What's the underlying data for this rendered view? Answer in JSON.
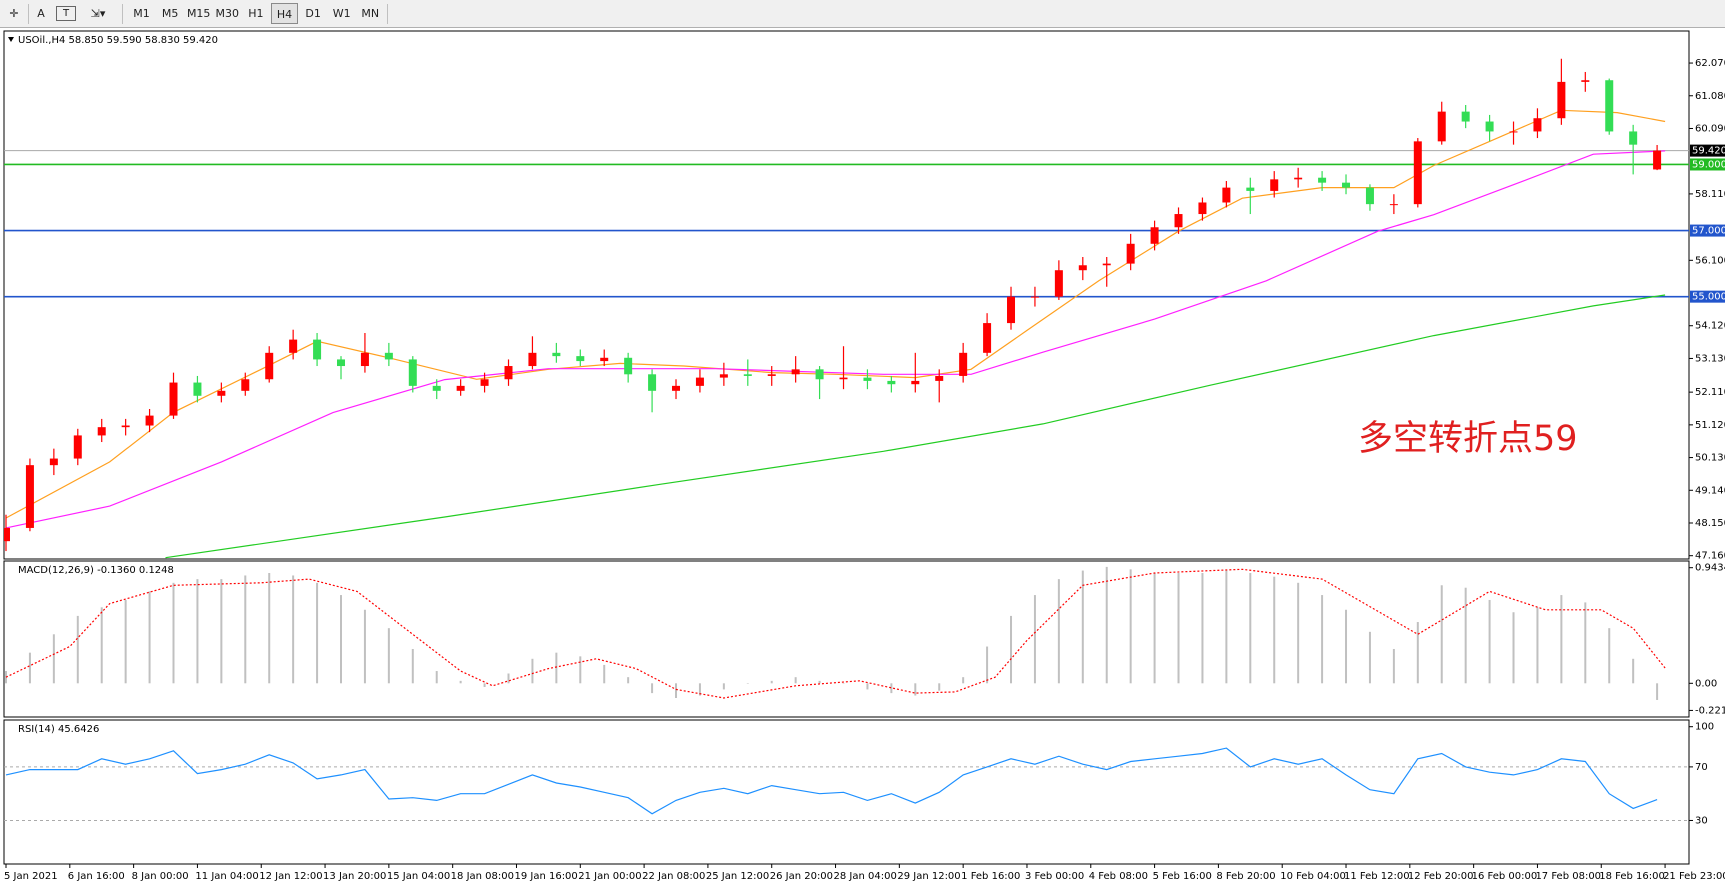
{
  "toolbar": {
    "tools": [
      "A",
      "T"
    ],
    "periods": [
      "M1",
      "M5",
      "M15",
      "M30",
      "H1",
      "H4",
      "D1",
      "W1",
      "MN"
    ],
    "active": "H4"
  },
  "chart_data": [
    {
      "type": "candlestick",
      "title": "USOil.,H4  58.850 59.590 58.830 59.420",
      "xlim": [
        0,
        211
      ],
      "ylim": [
        47.06,
        63.04
      ],
      "yticks": [
        {
          "value": 62.07,
          "label": "62.070"
        },
        {
          "value": 61.08,
          "label": "61.080"
        },
        {
          "value": 60.09,
          "label": "60.090"
        },
        {
          "value": 58.11,
          "label": "58.110"
        },
        {
          "value": 56.1,
          "label": "56.100"
        },
        {
          "value": 54.12,
          "label": "54.120"
        },
        {
          "value": 53.13,
          "label": "53.130"
        },
        {
          "value": 52.11,
          "label": "52.110"
        },
        {
          "value": 51.12,
          "label": "51.120"
        },
        {
          "value": 50.13,
          "label": "50.130"
        },
        {
          "value": 49.14,
          "label": "49.140"
        },
        {
          "value": 48.15,
          "label": "48.150"
        },
        {
          "value": 47.16,
          "label": "47.160"
        }
      ],
      "up_color": "#ff0000",
      "down_color": "#33dd55",
      "x": [
        0,
        3,
        6,
        9,
        12,
        15,
        18,
        21,
        24,
        27,
        30,
        33,
        36,
        39,
        42,
        45,
        48,
        51,
        54,
        57,
        60,
        63,
        66,
        69,
        72,
        75,
        78,
        81,
        84,
        87,
        90,
        93,
        96,
        99,
        102,
        105,
        108,
        111,
        114,
        117,
        120,
        123,
        126,
        129,
        132,
        135,
        138,
        141,
        144,
        147,
        150,
        153,
        156,
        159,
        162,
        165,
        168,
        171,
        174,
        177,
        180,
        183,
        186,
        189,
        192,
        195,
        198,
        201,
        204,
        207
      ],
      "ohlc": [
        [
          47.6,
          48.4,
          47.3,
          48.0
        ],
        [
          48.0,
          50.1,
          47.9,
          49.9
        ],
        [
          49.9,
          50.4,
          49.6,
          50.1
        ],
        [
          50.1,
          51.0,
          49.9,
          50.8
        ],
        [
          50.8,
          51.3,
          50.6,
          51.05
        ],
        [
          51.05,
          51.3,
          50.8,
          51.1
        ],
        [
          51.1,
          51.6,
          50.9,
          51.4
        ],
        [
          51.4,
          52.7,
          51.3,
          52.4
        ],
        [
          52.4,
          52.6,
          51.8,
          52.0
        ],
        [
          52.0,
          52.4,
          51.8,
          52.15
        ],
        [
          52.15,
          52.7,
          52.0,
          52.5
        ],
        [
          52.5,
          53.5,
          52.4,
          53.3
        ],
        [
          53.3,
          54.0,
          53.1,
          53.7
        ],
        [
          53.7,
          53.9,
          52.9,
          53.1
        ],
        [
          53.1,
          53.2,
          52.5,
          52.9
        ],
        [
          52.9,
          53.9,
          52.7,
          53.3
        ],
        [
          53.3,
          53.6,
          52.9,
          53.1
        ],
        [
          53.1,
          53.2,
          52.1,
          52.3
        ],
        [
          52.3,
          52.5,
          51.9,
          52.15
        ],
        [
          52.15,
          52.5,
          52.0,
          52.3
        ],
        [
          52.3,
          52.7,
          52.1,
          52.5
        ],
        [
          52.5,
          53.1,
          52.3,
          52.9
        ],
        [
          52.9,
          53.8,
          52.8,
          53.3
        ],
        [
          53.3,
          53.6,
          53.0,
          53.2
        ],
        [
          53.2,
          53.4,
          52.9,
          53.05
        ],
        [
          53.05,
          53.4,
          52.9,
          53.15
        ],
        [
          53.15,
          53.3,
          52.4,
          52.65
        ],
        [
          52.65,
          52.8,
          51.5,
          52.15
        ],
        [
          52.15,
          52.5,
          51.9,
          52.3
        ],
        [
          52.3,
          52.8,
          52.1,
          52.55
        ],
        [
          52.55,
          53.0,
          52.3,
          52.65
        ],
        [
          52.65,
          53.1,
          52.3,
          52.6
        ],
        [
          52.6,
          52.9,
          52.3,
          52.65
        ],
        [
          52.65,
          53.2,
          52.4,
          52.8
        ],
        [
          52.8,
          52.9,
          51.9,
          52.5
        ],
        [
          52.5,
          53.5,
          52.2,
          52.55
        ],
        [
          52.55,
          52.8,
          52.2,
          52.45
        ],
        [
          52.45,
          52.6,
          52.1,
          52.35
        ],
        [
          52.35,
          53.3,
          52.1,
          52.45
        ],
        [
          52.45,
          52.8,
          51.8,
          52.6
        ],
        [
          52.6,
          53.6,
          52.4,
          53.3
        ],
        [
          53.3,
          54.5,
          53.2,
          54.2
        ],
        [
          54.2,
          55.3,
          54.0,
          55.0
        ],
        [
          55.0,
          55.3,
          54.7,
          55.0
        ],
        [
          55.0,
          56.1,
          54.9,
          55.8
        ],
        [
          55.8,
          56.2,
          55.5,
          55.95
        ],
        [
          55.95,
          56.2,
          55.3,
          56.0
        ],
        [
          56.0,
          56.9,
          55.8,
          56.6
        ],
        [
          56.6,
          57.3,
          56.4,
          57.1
        ],
        [
          57.1,
          57.7,
          56.9,
          57.5
        ],
        [
          57.5,
          58.0,
          57.3,
          57.85
        ],
        [
          57.85,
          58.5,
          57.7,
          58.3
        ],
        [
          58.3,
          58.6,
          57.5,
          58.2
        ],
        [
          58.2,
          58.8,
          58.0,
          58.55
        ],
        [
          58.55,
          58.9,
          58.3,
          58.6
        ],
        [
          58.6,
          58.8,
          58.2,
          58.45
        ],
        [
          58.45,
          58.7,
          58.1,
          58.3
        ],
        [
          58.3,
          58.4,
          57.6,
          57.8
        ],
        [
          57.8,
          58.1,
          57.5,
          57.8
        ],
        [
          57.8,
          59.8,
          57.7,
          59.7
        ],
        [
          59.7,
          60.9,
          59.6,
          60.6
        ],
        [
          60.6,
          60.8,
          60.1,
          60.3
        ],
        [
          60.3,
          60.5,
          59.7,
          60.0
        ],
        [
          60.0,
          60.3,
          59.6,
          60.0
        ],
        [
          60.0,
          60.7,
          59.8,
          60.4
        ],
        [
          60.4,
          62.2,
          60.2,
          61.5
        ],
        [
          61.5,
          61.8,
          61.2,
          61.55
        ],
        [
          61.55,
          61.6,
          59.9,
          60.0
        ],
        [
          60.0,
          60.2,
          58.7,
          59.6
        ],
        [
          58.85,
          59.59,
          58.83,
          59.42
        ]
      ],
      "lines": [
        {
          "color": "#ffa020",
          "x": [
            0,
            13,
            21,
            32,
            39,
            48,
            59,
            68,
            77,
            85,
            96,
            104,
            114,
            121,
            128,
            137,
            147,
            155,
            165,
            174,
            179,
            186,
            195,
            202,
            208
          ],
          "values": [
            48.3,
            50.0,
            51.5,
            52.8,
            53.65,
            53.15,
            52.5,
            52.8,
            52.98,
            52.9,
            52.7,
            52.65,
            52.55,
            52.8,
            53.98,
            55.48,
            56.98,
            57.98,
            58.3,
            58.3,
            58.97,
            59.7,
            60.64,
            60.57,
            60.3
          ]
        },
        {
          "color": "#ff20ff",
          "x": [
            0,
            13,
            27,
            41,
            55,
            68,
            77,
            89,
            110,
            121,
            130,
            144,
            158,
            172,
            179,
            190,
            199,
            208
          ],
          "values": [
            48.0,
            48.66,
            50.0,
            51.49,
            52.49,
            52.82,
            52.82,
            52.82,
            52.65,
            52.65,
            53.32,
            54.32,
            55.48,
            56.98,
            57.48,
            58.48,
            59.31,
            59.41
          ]
        },
        {
          "color": "#22cc22",
          "x": [
            20,
            55,
            82,
            110,
            130,
            151,
            179,
            199,
            208
          ],
          "values": [
            47.1,
            48.33,
            49.32,
            50.32,
            51.15,
            52.32,
            53.82,
            54.72,
            55.05
          ]
        }
      ],
      "levels": [
        {
          "value": 59.42,
          "label": "59.420",
          "color": "#a8a8a8",
          "tag": "#000000"
        },
        {
          "value": 59.0,
          "label": "59.000",
          "color": "#22bb22",
          "tag": "#22bb22"
        },
        {
          "value": 57.0,
          "label": "57.000",
          "color": "#2255cc",
          "tag": "#2255cc"
        },
        {
          "value": 55.0,
          "label": "55.000",
          "color": "#2255cc",
          "tag": "#2255cc"
        }
      ],
      "annotation": {
        "text": "多空转折点59",
        "color": "#e02020"
      }
    },
    {
      "type": "macd",
      "title": "MACD(12,26,9) -0.1360 0.1248",
      "xlim": [
        0,
        211
      ],
      "ylim": [
        -0.275,
        0.998
      ],
      "yticks": [
        0.9434,
        {
          "value": 0,
          "label": "0.00"
        },
        -0.2213
      ],
      "color": "#c0c0c0",
      "x": [
        0,
        3,
        6,
        9,
        12,
        15,
        18,
        21,
        24,
        27,
        30,
        33,
        36,
        39,
        42,
        45,
        48,
        51,
        54,
        57,
        60,
        63,
        66,
        69,
        72,
        75,
        78,
        81,
        84,
        87,
        90,
        93,
        96,
        99,
        102,
        105,
        108,
        111,
        114,
        117,
        120,
        123,
        126,
        129,
        132,
        135,
        138,
        141,
        144,
        147,
        150,
        153,
        156,
        159,
        162,
        165,
        168,
        171,
        174,
        177,
        180,
        183,
        186,
        189,
        192,
        195,
        198,
        201,
        204,
        207
      ],
      "values": [
        0.1,
        0.25,
        0.4,
        0.55,
        0.62,
        0.68,
        0.75,
        0.82,
        0.85,
        0.85,
        0.88,
        0.9,
        0.88,
        0.82,
        0.72,
        0.6,
        0.45,
        0.28,
        0.1,
        0.02,
        -0.03,
        0.08,
        0.2,
        0.25,
        0.22,
        0.15,
        0.05,
        -0.08,
        -0.12,
        -0.1,
        -0.05,
        0.0,
        0.02,
        0.05,
        0.02,
        0.0,
        -0.05,
        -0.08,
        -0.1,
        -0.06,
        0.05,
        0.3,
        0.55,
        0.72,
        0.85,
        0.92,
        0.95,
        0.93,
        0.9,
        0.9,
        0.9,
        0.92,
        0.9,
        0.87,
        0.82,
        0.72,
        0.6,
        0.42,
        0.28,
        0.5,
        0.8,
        0.78,
        0.68,
        0.58,
        0.62,
        0.72,
        0.66,
        0.45,
        0.2,
        -0.136
      ],
      "signal": {
        "color": "#ff0000",
        "x": [
          0,
          8,
          13,
          21,
          32,
          38,
          44,
          50,
          57,
          61,
          68,
          74,
          79,
          84,
          90,
          99,
          107,
          114,
          119,
          124,
          128,
          135,
          144,
          155,
          165,
          173,
          177,
          186,
          193,
          200,
          204,
          208
        ],
        "values": [
          0.05,
          0.3,
          0.65,
          0.8,
          0.82,
          0.85,
          0.75,
          0.45,
          0.1,
          -0.02,
          0.12,
          0.2,
          0.12,
          -0.05,
          -0.12,
          -0.02,
          0.02,
          -0.08,
          -0.07,
          0.05,
          0.35,
          0.8,
          0.9,
          0.93,
          0.85,
          0.55,
          0.4,
          0.75,
          0.6,
          0.6,
          0.45,
          0.1248
        ]
      }
    },
    {
      "type": "line",
      "title": "RSI(14) 45.6426",
      "xlim": [
        0,
        211
      ],
      "ylim": [
        -2.5,
        105
      ],
      "yticks": [
        100,
        70,
        30
      ],
      "levels": [
        70,
        30
      ],
      "color": "#1e90ff",
      "x": [
        0,
        3,
        6,
        9,
        12,
        15,
        18,
        21,
        24,
        27,
        30,
        33,
        36,
        39,
        42,
        45,
        48,
        51,
        54,
        57,
        60,
        63,
        66,
        69,
        72,
        75,
        78,
        81,
        84,
        87,
        90,
        93,
        96,
        99,
        102,
        105,
        108,
        111,
        114,
        117,
        120,
        123,
        126,
        129,
        132,
        135,
        138,
        141,
        144,
        147,
        150,
        153,
        156,
        159,
        162,
        165,
        168,
        171,
        174,
        177,
        180,
        183,
        186,
        189,
        192,
        195,
        198,
        201,
        204,
        207
      ],
      "values": [
        64,
        68,
        68,
        68,
        76,
        72,
        76,
        82,
        65,
        68,
        72,
        79,
        73,
        61,
        64,
        68,
        46,
        47,
        45,
        50,
        50,
        57,
        64,
        58,
        55,
        51,
        47,
        35,
        45,
        51,
        54,
        50,
        56,
        53,
        50,
        51,
        45,
        50,
        43,
        51,
        64,
        70,
        76,
        72,
        78,
        72,
        68,
        74,
        76,
        78,
        80,
        84,
        70,
        76,
        72,
        76,
        64,
        53,
        50,
        76,
        80,
        70,
        66,
        64,
        68,
        76,
        74,
        50,
        39,
        45.6
      ],
      "xticks": [
        {
          "value": 0,
          "label": "5 Jan 2021"
        },
        {
          "value": 8,
          "label": "6 Jan 16:00"
        },
        {
          "value": 16,
          "label": "8 Jan 00:00"
        },
        {
          "value": 24,
          "label": "11 Jan 04:00"
        },
        {
          "value": 32,
          "label": "12 Jan 12:00"
        },
        {
          "value": 40,
          "label": "13 Jan 20:00"
        },
        {
          "value": 48,
          "label": "15 Jan 04:00"
        },
        {
          "value": 56,
          "label": "18 Jan 08:00"
        },
        {
          "value": 64,
          "label": "19 Jan 16:00"
        },
        {
          "value": 72,
          "label": "21 Jan 00:00"
        },
        {
          "value": 80,
          "label": "22 Jan 08:00"
        },
        {
          "value": 88,
          "label": "25 Jan 12:00"
        },
        {
          "value": 96,
          "label": "26 Jan 20:00"
        },
        {
          "value": 104,
          "label": "28 Jan 04:00"
        },
        {
          "value": 112,
          "label": "29 Jan 12:00"
        },
        {
          "value": 120,
          "label": "1 Feb 16:00"
        },
        {
          "value": 128,
          "label": "3 Feb 00:00"
        },
        {
          "value": 136,
          "label": "4 Feb 08:00"
        },
        {
          "value": 144,
          "label": "5 Feb 16:00"
        },
        {
          "value": 152,
          "label": "8 Feb 20:00"
        },
        {
          "value": 160,
          "label": "10 Feb 04:00"
        },
        {
          "value": 168,
          "label": "11 Feb 12:00"
        },
        {
          "value": 176,
          "label": "12 Feb 20:00"
        },
        {
          "value": 184,
          "label": "16 Feb 00:00"
        },
        {
          "value": 192,
          "label": "17 Feb 08:00"
        },
        {
          "value": 200,
          "label": "18 Feb 16:00"
        },
        {
          "value": 208,
          "label": "21 Feb 23:00"
        }
      ]
    }
  ]
}
